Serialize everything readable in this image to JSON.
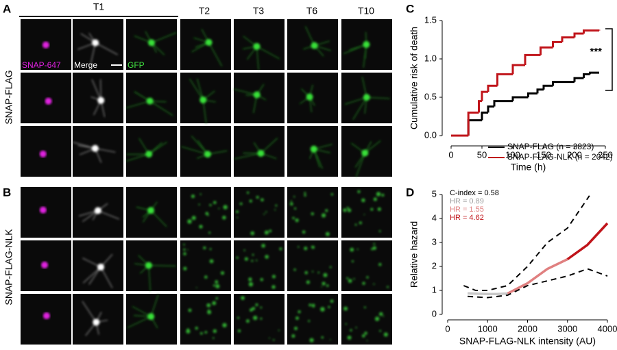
{
  "panels": {
    "a": "A",
    "b": "B",
    "c": "C",
    "d": "D"
  },
  "columns": [
    "T1",
    "T2",
    "T3",
    "T6",
    "T10"
  ],
  "rows": [
    "SNAP-FLAG",
    "SNAP-FLAG-NLK"
  ],
  "channels": [
    {
      "label": "SNAP-647",
      "color": "#e020e0"
    },
    {
      "label": "Merge",
      "color": "#ffffff"
    },
    {
      "label": "GFP",
      "color": "#40e040"
    }
  ],
  "chart_data": [
    {
      "type": "step",
      "xlabel": "Time (h)",
      "ylabel": "Cumulative risk of death",
      "annotation": "***",
      "xlim": [
        0,
        250
      ],
      "xticks": [
        0,
        50,
        100,
        150,
        200,
        250
      ],
      "ylim": [
        0,
        1.5
      ],
      "yticks": [
        {
          "value": 0,
          "label": "0.0"
        },
        {
          "value": 0.5,
          "label": "0.5"
        },
        {
          "value": 1,
          "label": "1.0"
        },
        {
          "value": 1.5,
          "label": "1.5"
        }
      ],
      "series": [
        {
          "name": "SNAP-FLAG (n = 3823)",
          "color": "#000000",
          "x": [
            0,
            28,
            50,
            60,
            70,
            100,
            125,
            140,
            150,
            165,
            200,
            215,
            225,
            240
          ],
          "values": [
            0,
            0.2,
            0.3,
            0.38,
            0.45,
            0.5,
            0.55,
            0.6,
            0.65,
            0.7,
            0.75,
            0.8,
            0.82,
            0.82
          ]
        },
        {
          "name": "SNAP-FLAG-NLK (n = 2042)",
          "color": "#c0141a",
          "x": [
            0,
            28,
            45,
            50,
            60,
            75,
            100,
            120,
            145,
            165,
            180,
            200,
            215,
            240
          ],
          "values": [
            0,
            0.3,
            0.45,
            0.57,
            0.65,
            0.8,
            0.92,
            1.05,
            1.15,
            1.22,
            1.28,
            1.33,
            1.37,
            1.38
          ]
        }
      ]
    },
    {
      "type": "line",
      "xlabel": "SNAP-FLAG-NLK intensity (AU)",
      "ylabel": "Relative hazard",
      "xlim": [
        0,
        4000
      ],
      "xticks": [
        0,
        1000,
        2000,
        3000,
        4000
      ],
      "ylim": [
        0,
        5
      ],
      "yticks": [
        0,
        1,
        2,
        3,
        4,
        5
      ],
      "annotations": [
        {
          "text": "C-index = 0.58",
          "color": "#000000"
        },
        {
          "text": "HR = 0.89",
          "color": "#a0a0a0"
        },
        {
          "text": "HR = 1.55",
          "color": "#e08080"
        },
        {
          "text": "HR = 4.62",
          "color": "#c0141a"
        }
      ],
      "series": [
        {
          "color": "#c8c8c8",
          "dash": false,
          "x": [
            500,
            750,
            1000,
            1250,
            1500
          ],
          "values": [
            0.88,
            0.86,
            0.85,
            0.85,
            0.87
          ]
        },
        {
          "color": "#e08080",
          "dash": false,
          "x": [
            1500,
            2000,
            2500,
            3000
          ],
          "values": [
            0.87,
            1.3,
            1.9,
            2.3
          ]
        },
        {
          "color": "#c0141a",
          "dash": false,
          "x": [
            3000,
            3500,
            4000
          ],
          "values": [
            2.3,
            2.9,
            3.8
          ]
        },
        {
          "color": "#000000",
          "dash": true,
          "x": [
            400,
            700,
            1000,
            1500,
            2000,
            2500,
            3000,
            3550
          ],
          "values": [
            1.2,
            1.0,
            1.0,
            1.2,
            2.0,
            3.0,
            3.6,
            4.95
          ]
        },
        {
          "color": "#000000",
          "dash": true,
          "x": [
            500,
            1000,
            1500,
            2000,
            2500,
            3000,
            3500,
            4000
          ],
          "values": [
            0.75,
            0.7,
            0.8,
            1.2,
            1.4,
            1.6,
            1.9,
            1.6
          ]
        }
      ]
    }
  ]
}
